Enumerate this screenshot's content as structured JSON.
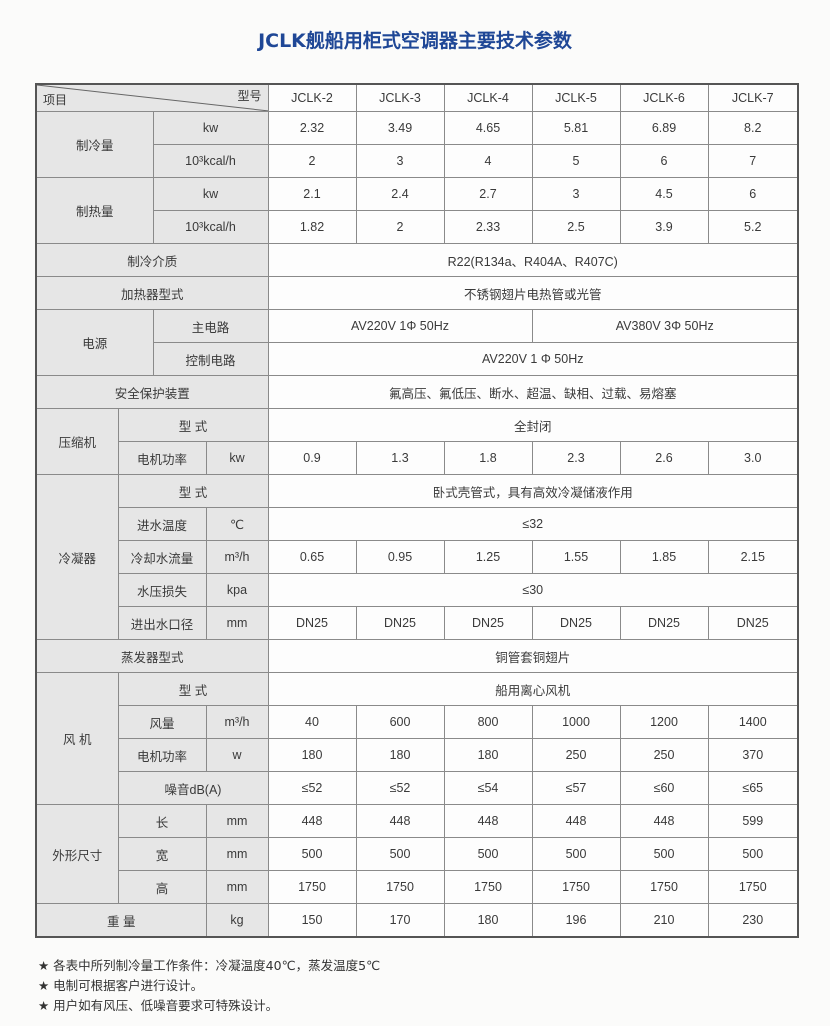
{
  "title": "JCLK舰船用柜式空调器主要技术参数",
  "header": {
    "item_label": "项目",
    "model_label": "型号",
    "models": [
      "JCLK-2",
      "JCLK-3",
      "JCLK-4",
      "JCLK-5",
      "JCLK-6",
      "JCLK-7"
    ]
  },
  "cooling": {
    "label": "制冷量",
    "kw": {
      "unit": "kw",
      "values": [
        "2.32",
        "3.49",
        "4.65",
        "5.81",
        "6.89",
        "8.2"
      ]
    },
    "kcal": {
      "unit": "10³kcal/h",
      "values": [
        "2",
        "3",
        "4",
        "5",
        "6",
        "7"
      ]
    }
  },
  "heating": {
    "label": "制热量",
    "kw": {
      "unit": "kw",
      "values": [
        "2.1",
        "2.4",
        "2.7",
        "3",
        "4.5",
        "6"
      ]
    },
    "kcal": {
      "unit": "10³kcal/h",
      "values": [
        "1.82",
        "2",
        "2.33",
        "2.5",
        "3.9",
        "5.2"
      ]
    }
  },
  "refrigerant": {
    "label": "制冷介质",
    "value": "R22(R134a、R404A、R407C)"
  },
  "heater": {
    "label": "加热器型式",
    "value": "不锈钢翅片电热管或光管"
  },
  "power": {
    "label": "电源",
    "main": {
      "label": "主电路",
      "value_a": "AV220V 1Φ 50Hz",
      "value_b": "AV380V 3Φ 50Hz"
    },
    "control": {
      "label": "控制电路",
      "value": "AV220V 1 Φ 50Hz"
    }
  },
  "safety": {
    "label": "安全保护装置",
    "value": "氟高压、氟低压、断水、超温、缺相、过载、易熔塞"
  },
  "compressor": {
    "label": "压缩机",
    "type": {
      "label": "型 式",
      "value": "全封闭"
    },
    "motor": {
      "label": "电机功率",
      "unit": "kw",
      "values": [
        "0.9",
        "1.3",
        "1.8",
        "2.3",
        "2.6",
        "3.0"
      ]
    }
  },
  "condenser": {
    "label": "冷凝器",
    "type": {
      "label": "型 式",
      "value": "卧式壳管式，具有高效冷凝储液作用"
    },
    "inlet_temp": {
      "label": "进水温度",
      "unit": "℃",
      "value": "≤32"
    },
    "flow": {
      "label": "冷却水流量",
      "unit": "m³/h",
      "values": [
        "0.65",
        "0.95",
        "1.25",
        "1.55",
        "1.85",
        "2.15"
      ]
    },
    "pressure_loss": {
      "label": "水压损失",
      "unit": "kpa",
      "value": "≤30"
    },
    "pipe": {
      "label": "进出水口径",
      "unit": "mm",
      "values": [
        "DN25",
        "DN25",
        "DN25",
        "DN25",
        "DN25",
        "DN25"
      ]
    }
  },
  "evaporator": {
    "label": "蒸发器型式",
    "value": "铜管套铜翅片"
  },
  "fan": {
    "label": "风 机",
    "type": {
      "label": "型 式",
      "value": "船用离心风机"
    },
    "airflow": {
      "label": "风量",
      "unit": "m³/h",
      "values": [
        "40",
        "600",
        "800",
        "1000",
        "1200",
        "1400"
      ]
    },
    "motor": {
      "label": "电机功率",
      "unit": "w",
      "values": [
        "180",
        "180",
        "180",
        "250",
        "250",
        "370"
      ]
    },
    "noise": {
      "label": "噪音dB(A)",
      "values": [
        "≤52",
        "≤52",
        "≤54",
        "≤57",
        "≤60",
        "≤65"
      ]
    }
  },
  "dimensions": {
    "label": "外形尺寸",
    "length": {
      "label": "长",
      "unit": "mm",
      "values": [
        "448",
        "448",
        "448",
        "448",
        "448",
        "599"
      ]
    },
    "width": {
      "label": "宽",
      "unit": "mm",
      "values": [
        "500",
        "500",
        "500",
        "500",
        "500",
        "500"
      ]
    },
    "height": {
      "label": "高",
      "unit": "mm",
      "values": [
        "1750",
        "1750",
        "1750",
        "1750",
        "1750",
        "1750"
      ]
    }
  },
  "weight": {
    "label": "重 量",
    "unit": "kg",
    "values": [
      "150",
      "170",
      "180",
      "196",
      "210",
      "230"
    ]
  },
  "notes": [
    "★ 各表中所列制冷量工作条件：冷凝温度40℃，蒸发温度5℃",
    "★ 电制可根据客户进行设计。",
    "★ 用户如有风压、低噪音要求可特殊设计。"
  ]
}
